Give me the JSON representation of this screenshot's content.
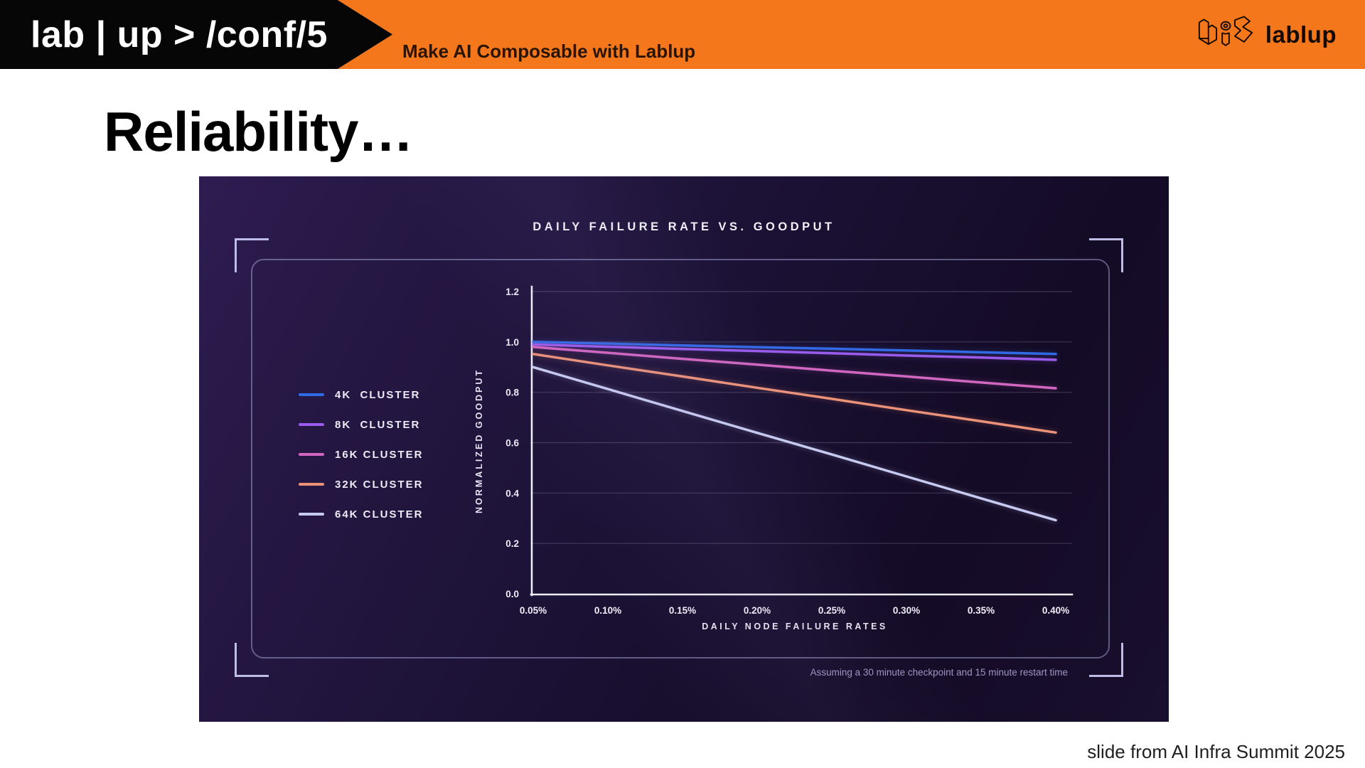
{
  "header": {
    "banner_text": "lab | up > /conf/5",
    "tagline": "Make AI Composable with Lablup",
    "brand": "lablup"
  },
  "slide": {
    "title": "Reliability…",
    "credit": "slide from AI Infra Summit 2025"
  },
  "colors": {
    "header_orange": "#F4771C",
    "banner_black": "#060606",
    "panel_background": "#1B1134",
    "bracket": "#BDBDE8",
    "axis": "#EDEDF5",
    "gridline": "rgba(205,205,235,0.22)"
  },
  "chart_data": {
    "type": "line",
    "title": "DAILY FAILURE RATE VS. GOODPUT",
    "xlabel": "DAILY NODE FAILURE RATES",
    "ylabel": "NORMALIZED GOODPUT",
    "note": "Assuming a 30 minute checkpoint and 15 minute restart time",
    "x": [
      0.05,
      0.1,
      0.15,
      0.2,
      0.25,
      0.3,
      0.35,
      0.4
    ],
    "x_tick_labels": [
      "0.05%",
      "0.10%",
      "0.15%",
      "0.20%",
      "0.25%",
      "0.30%",
      "0.35%",
      "0.40%"
    ],
    "y_ticks": [
      0.0,
      0.2,
      0.4,
      0.6,
      0.8,
      1.0,
      1.2
    ],
    "ylim": [
      0,
      1.2
    ],
    "grid": true,
    "legend_position": "left",
    "series": [
      {
        "name": "4K  CLUSTER",
        "color": "#2F6BE4",
        "values": [
          1.0,
          0.993,
          0.986,
          0.979,
          0.973,
          0.966,
          0.959,
          0.952
        ]
      },
      {
        "name": "8K  CLUSTER",
        "color": "#9A5CEC",
        "values": [
          0.99,
          0.981,
          0.972,
          0.964,
          0.955,
          0.946,
          0.938,
          0.929
        ]
      },
      {
        "name": "16K CLUSTER",
        "color": "#D167C0",
        "values": [
          0.98,
          0.957,
          0.933,
          0.91,
          0.886,
          0.863,
          0.839,
          0.816
        ]
      },
      {
        "name": "32K CLUSTER",
        "color": "#EC9279",
        "values": [
          0.952,
          0.907,
          0.863,
          0.818,
          0.774,
          0.729,
          0.685,
          0.64
        ]
      },
      {
        "name": "64K CLUSTER",
        "color": "#C7CBF1",
        "values": [
          0.9,
          0.813,
          0.726,
          0.639,
          0.553,
          0.466,
          0.379,
          0.292
        ]
      }
    ]
  }
}
